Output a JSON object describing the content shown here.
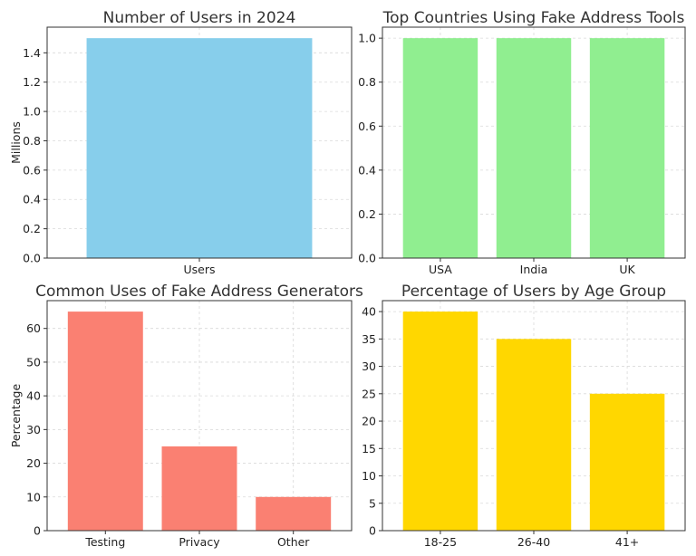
{
  "chart_data": [
    {
      "type": "bar",
      "title": "Number of Users in 2024",
      "xlabel": "",
      "ylabel": "Millions",
      "categories": [
        "Users"
      ],
      "values": [
        1.5
      ],
      "ylim": [
        0,
        1.575
      ],
      "yticks": [
        "0.0",
        "0.2",
        "0.4",
        "0.6",
        "0.8",
        "1.0",
        "1.2",
        "1.4"
      ],
      "color": "#87CEEB",
      "grid": true
    },
    {
      "type": "bar",
      "title": "Top Countries Using Fake Address Tools",
      "xlabel": "",
      "ylabel": "",
      "categories": [
        "USA",
        "India",
        "UK"
      ],
      "values": [
        1,
        1,
        1
      ],
      "ylim": [
        0,
        1.05
      ],
      "yticks": [
        "0.0",
        "0.2",
        "0.4",
        "0.6",
        "0.8",
        "1.0"
      ],
      "color": "#90EE90",
      "grid": true
    },
    {
      "type": "bar",
      "title": "Common Uses of Fake Address Generators",
      "xlabel": "",
      "ylabel": "Percentage",
      "categories": [
        "Testing",
        "Privacy",
        "Other"
      ],
      "values": [
        65,
        25,
        10
      ],
      "ylim": [
        0,
        68.25
      ],
      "yticks": [
        "0",
        "10",
        "20",
        "30",
        "40",
        "50",
        "60"
      ],
      "color": "#FA8072",
      "grid": true
    },
    {
      "type": "bar",
      "title": "Percentage of Users by Age Group",
      "xlabel": "",
      "ylabel": "",
      "categories": [
        "18-25",
        "26-40",
        "41+"
      ],
      "values": [
        40,
        35,
        25
      ],
      "ylim": [
        0,
        42
      ],
      "yticks": [
        "0",
        "5",
        "10",
        "15",
        "20",
        "25",
        "30",
        "35",
        "40"
      ],
      "color": "#FFD700",
      "grid": true
    }
  ]
}
